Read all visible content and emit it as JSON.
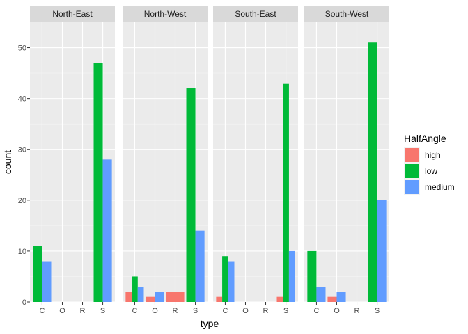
{
  "chart_data": {
    "type": "bar",
    "facets": [
      "North-East",
      "North-West",
      "South-East",
      "South-West"
    ],
    "categories": [
      "C",
      "O",
      "R",
      "S"
    ],
    "xlabel": "type",
    "ylabel": "count",
    "ylim": [
      0,
      55
    ],
    "yticks": [
      0,
      10,
      20,
      30,
      40,
      50
    ],
    "grid": true,
    "legend": {
      "title": "HalfAngle",
      "position": "right",
      "entries": [
        {
          "name": "high",
          "color": "#F8766D"
        },
        {
          "name": "low",
          "color": "#00BA38"
        },
        {
          "name": "medium",
          "color": "#619CFF"
        }
      ]
    },
    "panels": [
      {
        "facet": "North-East",
        "series": [
          {
            "name": "high",
            "values": [
              0,
              0,
              0,
              0
            ]
          },
          {
            "name": "low",
            "values": [
              11,
              0,
              0,
              47
            ]
          },
          {
            "name": "medium",
            "values": [
              8,
              0,
              0,
              28
            ]
          }
        ]
      },
      {
        "facet": "North-West",
        "series": [
          {
            "name": "high",
            "values": [
              2,
              1,
              2,
              0
            ]
          },
          {
            "name": "low",
            "values": [
              5,
              0,
              0,
              42
            ]
          },
          {
            "name": "medium",
            "values": [
              3,
              2,
              0,
              14
            ]
          }
        ]
      },
      {
        "facet": "South-East",
        "series": [
          {
            "name": "high",
            "values": [
              1,
              0,
              0,
              1
            ]
          },
          {
            "name": "low",
            "values": [
              9,
              0,
              0,
              43
            ]
          },
          {
            "name": "medium",
            "values": [
              8,
              0,
              0,
              10
            ]
          }
        ]
      },
      {
        "facet": "South-West",
        "series": [
          {
            "name": "high",
            "values": [
              0,
              1,
              0,
              0
            ]
          },
          {
            "name": "low",
            "values": [
              10,
              0,
              0,
              51
            ]
          },
          {
            "name": "medium",
            "values": [
              3,
              2,
              0,
              20
            ]
          }
        ]
      }
    ]
  }
}
